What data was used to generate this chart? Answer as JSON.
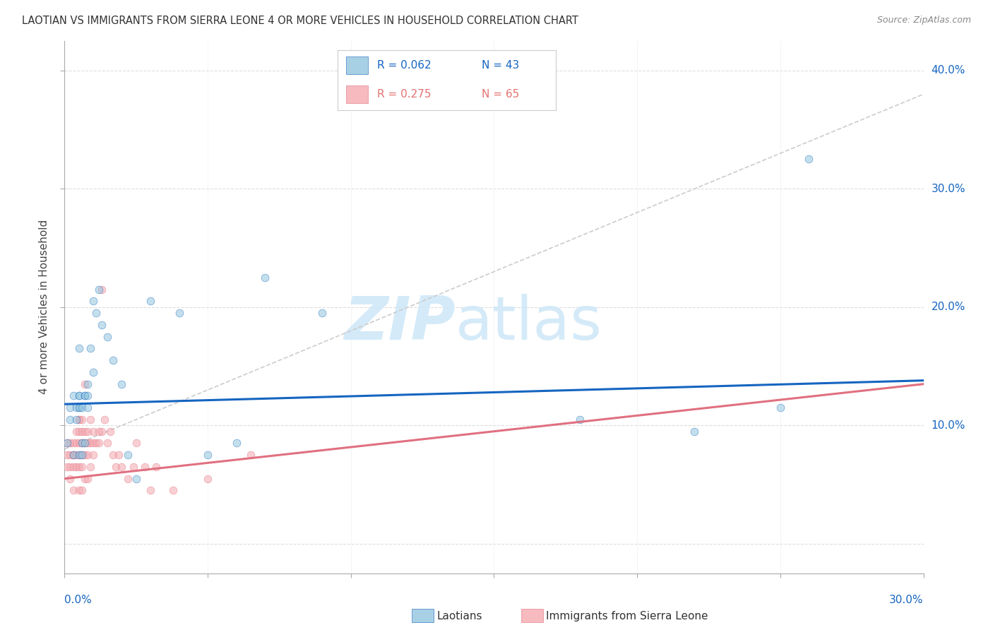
{
  "title": "LAOTIAN VS IMMIGRANTS FROM SIERRA LEONE 4 OR MORE VEHICLES IN HOUSEHOLD CORRELATION CHART",
  "source": "Source: ZipAtlas.com",
  "ylabel": "4 or more Vehicles in Household",
  "xmin": 0.0,
  "xmax": 0.3,
  "ymin": -0.025,
  "ymax": 0.425,
  "yticks": [
    0.0,
    0.1,
    0.2,
    0.3,
    0.4
  ],
  "ytick_labels_right": [
    "",
    "10.0%",
    "20.0%",
    "30.0%",
    "40.0%"
  ],
  "laotian_x": [
    0.001,
    0.002,
    0.002,
    0.003,
    0.003,
    0.004,
    0.004,
    0.005,
    0.005,
    0.005,
    0.005,
    0.005,
    0.006,
    0.006,
    0.006,
    0.007,
    0.007,
    0.007,
    0.008,
    0.008,
    0.008,
    0.009,
    0.01,
    0.01,
    0.011,
    0.012,
    0.013,
    0.015,
    0.017,
    0.02,
    0.022,
    0.025,
    0.03,
    0.04,
    0.05,
    0.06,
    0.07,
    0.09,
    0.18,
    0.22,
    0.25,
    0.26,
    0.005
  ],
  "laotian_y": [
    0.085,
    0.115,
    0.105,
    0.075,
    0.125,
    0.115,
    0.105,
    0.075,
    0.115,
    0.115,
    0.125,
    0.125,
    0.075,
    0.085,
    0.115,
    0.085,
    0.125,
    0.125,
    0.115,
    0.125,
    0.135,
    0.165,
    0.145,
    0.205,
    0.195,
    0.215,
    0.185,
    0.175,
    0.155,
    0.135,
    0.075,
    0.055,
    0.205,
    0.195,
    0.075,
    0.085,
    0.225,
    0.195,
    0.105,
    0.095,
    0.115,
    0.325,
    0.165
  ],
  "sierra_x": [
    0.001,
    0.001,
    0.001,
    0.002,
    0.002,
    0.002,
    0.002,
    0.003,
    0.003,
    0.003,
    0.003,
    0.003,
    0.004,
    0.004,
    0.004,
    0.004,
    0.005,
    0.005,
    0.005,
    0.005,
    0.005,
    0.005,
    0.005,
    0.006,
    0.006,
    0.006,
    0.006,
    0.006,
    0.006,
    0.007,
    0.007,
    0.007,
    0.007,
    0.007,
    0.008,
    0.008,
    0.008,
    0.008,
    0.009,
    0.009,
    0.009,
    0.01,
    0.01,
    0.01,
    0.011,
    0.012,
    0.012,
    0.013,
    0.013,
    0.014,
    0.015,
    0.016,
    0.017,
    0.018,
    0.019,
    0.02,
    0.022,
    0.024,
    0.025,
    0.028,
    0.03,
    0.032,
    0.038,
    0.05,
    0.065
  ],
  "sierra_y": [
    0.075,
    0.065,
    0.085,
    0.065,
    0.075,
    0.055,
    0.085,
    0.045,
    0.065,
    0.075,
    0.085,
    0.075,
    0.065,
    0.075,
    0.085,
    0.095,
    0.045,
    0.065,
    0.075,
    0.085,
    0.095,
    0.105,
    0.105,
    0.045,
    0.065,
    0.075,
    0.085,
    0.095,
    0.105,
    0.055,
    0.075,
    0.085,
    0.095,
    0.135,
    0.055,
    0.075,
    0.085,
    0.095,
    0.065,
    0.085,
    0.105,
    0.075,
    0.085,
    0.095,
    0.085,
    0.085,
    0.095,
    0.095,
    0.215,
    0.105,
    0.085,
    0.095,
    0.075,
    0.065,
    0.075,
    0.065,
    0.055,
    0.065,
    0.085,
    0.065,
    0.045,
    0.065,
    0.045,
    0.055,
    0.075
  ],
  "laotian_color": "#92c5de",
  "sierra_color": "#f4a9b0",
  "laotian_line_color": "#1565C0",
  "sierra_line_color": "#e07080",
  "scatter_alpha": 0.55,
  "scatter_size": 60,
  "watermark_zip_color": "#d0e8f8",
  "watermark_atlas_color": "#d0e8f8",
  "grid_color": "#dddddd",
  "dashed_line_color": "#cccccc"
}
